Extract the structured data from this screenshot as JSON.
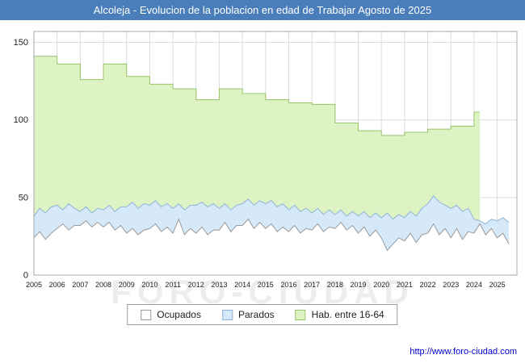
{
  "title": "Alcoleja - Evolucion de la poblacion en edad de Trabajar Agosto de 2025",
  "watermark": "FORO-CIUDAD",
  "footer": {
    "url": "http://www.foro-ciudad.com"
  },
  "colors": {
    "title_bar": "#4a7ebb",
    "grid": "#dcdcdc",
    "plot_border": "#aaaaaa",
    "tick_text": "#222222",
    "link": "#0000cc"
  },
  "chart_data": {
    "type": "area",
    "title": "Alcoleja - Evolucion de la poblacion en edad de Trabajar Agosto de 2025",
    "xlabel": "",
    "ylabel": "",
    "x_start": 2005,
    "x_step": 0.25,
    "xlim": [
      2005,
      2025.85
    ],
    "ylim": [
      0,
      157
    ],
    "yticks": [
      0,
      50,
      100,
      150
    ],
    "xticks": [
      2005,
      2006,
      2007,
      2008,
      2009,
      2010,
      2011,
      2012,
      2013,
      2014,
      2015,
      2016,
      2017,
      2018,
      2019,
      2020,
      2021,
      2022,
      2023,
      2024,
      2025
    ],
    "grid": true,
    "legend_position": "bottom",
    "series": [
      {
        "name": "Ocupados",
        "fill": "#ffffff",
        "stroke": "#999999",
        "step": false,
        "values": [
          24,
          28,
          23,
          27,
          30,
          33,
          29,
          32,
          32,
          35,
          31,
          34,
          31,
          34,
          29,
          32,
          27,
          30,
          26,
          29,
          30,
          33,
          28,
          31,
          27,
          36,
          26,
          30,
          27,
          31,
          26,
          29,
          29,
          34,
          28,
          32,
          32,
          36,
          30,
          34,
          30,
          33,
          28,
          31,
          28,
          32,
          27,
          30,
          29,
          33,
          28,
          31,
          30,
          34,
          29,
          32,
          27,
          31,
          25,
          29,
          24,
          16,
          20,
          24,
          22,
          27,
          21,
          26,
          27,
          33,
          26,
          30,
          24,
          30,
          23,
          28,
          27,
          33,
          26,
          30,
          24,
          27,
          20
        ]
      },
      {
        "name": "Parados",
        "fill": "#d6e9f8",
        "stroke": "#8cb4d8",
        "step": false,
        "values": [
          38,
          43,
          40,
          44,
          45,
          42,
          46,
          43,
          41,
          44,
          40,
          43,
          42,
          45,
          41,
          44,
          44,
          47,
          43,
          46,
          45,
          48,
          44,
          46,
          43,
          46,
          42,
          45,
          45,
          47,
          44,
          46,
          43,
          46,
          42,
          45,
          46,
          49,
          45,
          48,
          46,
          48,
          44,
          46,
          42,
          45,
          41,
          43,
          40,
          43,
          39,
          42,
          39,
          42,
          38,
          41,
          38,
          41,
          37,
          40,
          37,
          40,
          36,
          39,
          37,
          41,
          38,
          43,
          46,
          51,
          47,
          45,
          43,
          45,
          41,
          43,
          36,
          35,
          33,
          36,
          35,
          37,
          34
        ]
      },
      {
        "name": "Hab. entre 16-64",
        "fill": "#ddf3c3",
        "stroke": "#96c468",
        "step": true,
        "values": [
          141,
          141,
          141,
          141,
          136,
          136,
          136,
          136,
          126,
          126,
          126,
          126,
          136,
          136,
          136,
          136,
          128,
          128,
          128,
          128,
          123,
          123,
          123,
          123,
          120,
          120,
          120,
          120,
          113,
          113,
          113,
          113,
          120,
          120,
          120,
          120,
          117,
          117,
          117,
          117,
          113,
          113,
          113,
          113,
          111,
          111,
          111,
          111,
          110,
          110,
          110,
          110,
          98,
          98,
          98,
          98,
          93,
          93,
          93,
          93,
          90,
          90,
          90,
          90,
          92,
          92,
          92,
          92,
          94,
          94,
          94,
          94,
          96,
          96,
          96,
          96,
          105,
          105,
          null,
          null,
          null,
          null,
          null
        ]
      }
    ]
  }
}
